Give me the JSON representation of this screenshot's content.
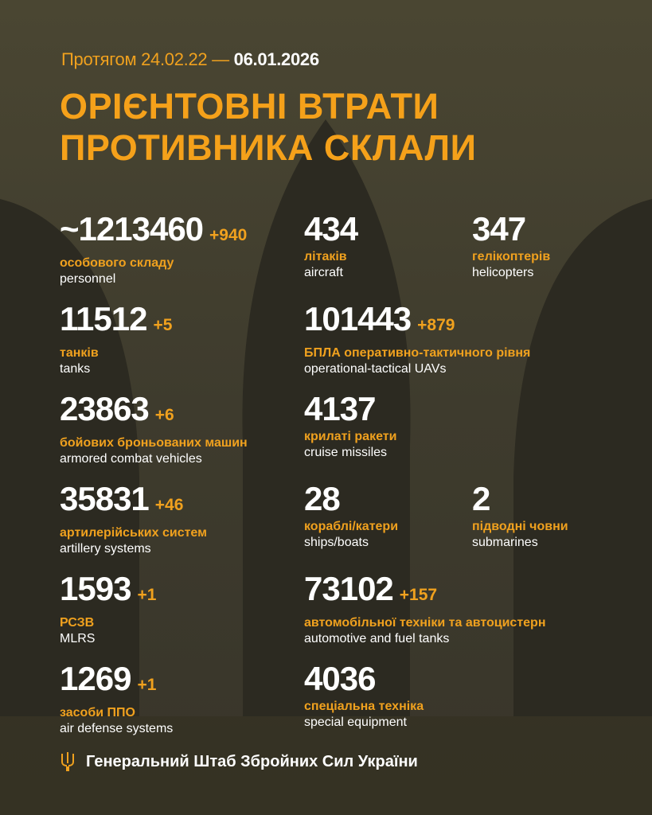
{
  "header": {
    "period_prefix": "Протягом 24.02.22 —",
    "period_end": "06.01.2026",
    "title_line1": "ОРІЄНТОВНІ ВТРАТИ",
    "title_line2": "ПРОТИВНИКА СКЛАЛИ"
  },
  "colors": {
    "background": "#3e3b2d",
    "accent": "#f0a11e",
    "text": "#ffffff"
  },
  "stats": [
    {
      "value": "~1213460",
      "delta": "+940",
      "ua": "особового складу",
      "en": "personnel"
    },
    {
      "value": "434",
      "delta": "",
      "ua": "літаків",
      "en": "aircraft"
    },
    {
      "value": "347",
      "delta": "",
      "ua": "гелікоптерів",
      "en": "helicopters"
    },
    {
      "value": "11512",
      "delta": "+5",
      "ua": "танків",
      "en": "tanks"
    },
    {
      "value": "101443",
      "delta": "+879",
      "ua": "БПЛА оперативно-тактичного рівня",
      "en": "operational-tactical UAVs"
    },
    {
      "value": "23863",
      "delta": "+6",
      "ua": "бойових броньованих машин",
      "en": "armored combat vehicles"
    },
    {
      "value": "4137",
      "delta": "",
      "ua": "крилаті ракети",
      "en": "cruise missiles"
    },
    {
      "value": "35831",
      "delta": "+46",
      "ua": "артилерійських систем",
      "en": "artillery systems"
    },
    {
      "value": "28",
      "delta": "",
      "ua": "кораблі/катери",
      "en": "ships/boats"
    },
    {
      "value": "2",
      "delta": "",
      "ua": "підводні човни",
      "en": "submarines"
    },
    {
      "value": "1593",
      "delta": "+1",
      "ua": "РСЗВ",
      "en": "MLRS"
    },
    {
      "value": "73102",
      "delta": "+157",
      "ua": "автомобільної техніки та автоцистерн",
      "en": "automotive and fuel tanks"
    },
    {
      "value": "1269",
      "delta": "+1",
      "ua": "засоби ППО",
      "en": "air defense systems"
    },
    {
      "value": "4036",
      "delta": "",
      "ua": "спеціальна техніка",
      "en": "special equipment"
    }
  ],
  "footer": {
    "icon": "trident-icon",
    "text": "Генеральний Штаб Збройних Сил України"
  }
}
